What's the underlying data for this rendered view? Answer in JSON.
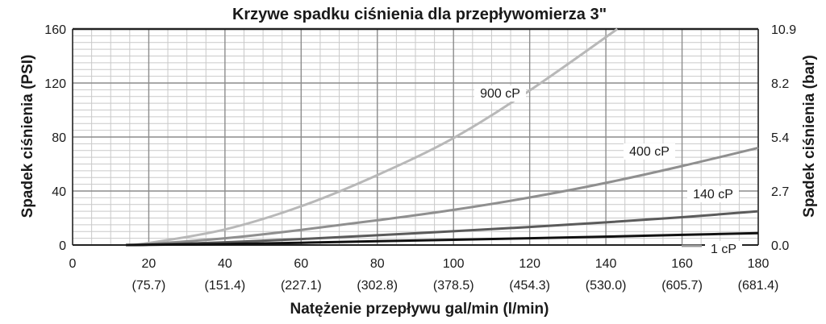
{
  "chart_data": {
    "type": "line",
    "title": "Krzywe spadku ciśnienia dla przepływomierza 3\"",
    "xlabel": "Natężenie przepływu gal/min (l/min)",
    "ylabel": "Spadek ciśnienia (PSI)",
    "y2label": "Spadek ciśnienia (bar)",
    "xlim": [
      0,
      180
    ],
    "ylim": [
      0,
      160
    ],
    "x_ticks": [
      0,
      20,
      40,
      60,
      80,
      100,
      120,
      140,
      160,
      180
    ],
    "x_ticks_secondary": [
      "",
      "(75.7)",
      "(151.4)",
      "(227.1)",
      "(302.8)",
      "(378.5)",
      "(454.3)",
      "(530.0)",
      "(605.7)",
      "(681.4)"
    ],
    "y_ticks": [
      0,
      40,
      80,
      120,
      160
    ],
    "y2_ticks": [
      "0.0",
      "2.7",
      "5.4",
      "8.2",
      "10.9"
    ],
    "grid": true,
    "series": [
      {
        "name": "900 cP",
        "color": "#b8b8b8",
        "x": [
          14,
          20,
          40,
          60,
          80,
          100,
          120,
          143
        ],
        "y": [
          0,
          1.5,
          11.5,
          28.7,
          51.8,
          79.2,
          114.5,
          160
        ]
      },
      {
        "name": "400 cP",
        "color": "#8f8f8f",
        "x": [
          14,
          20,
          40,
          60,
          80,
          100,
          120,
          140,
          160,
          180
        ],
        "y": [
          0,
          0.7,
          5,
          11.2,
          18.3,
          26,
          35.2,
          46,
          58.5,
          72
        ]
      },
      {
        "name": "140 cP",
        "color": "#5b5b5b",
        "x": [
          14,
          20,
          40,
          60,
          80,
          100,
          120,
          140,
          160,
          180
        ],
        "y": [
          0,
          0.3,
          2,
          4.4,
          7.2,
          10.2,
          13.4,
          16.8,
          20.6,
          25
        ]
      },
      {
        "name": "1 cP",
        "color": "#111111",
        "x": [
          14,
          20,
          40,
          60,
          80,
          100,
          120,
          140,
          160,
          180
        ],
        "y": [
          0,
          0.1,
          0.8,
          1.7,
          2.8,
          3.9,
          5,
          6.2,
          7.5,
          8.8
        ]
      }
    ]
  }
}
